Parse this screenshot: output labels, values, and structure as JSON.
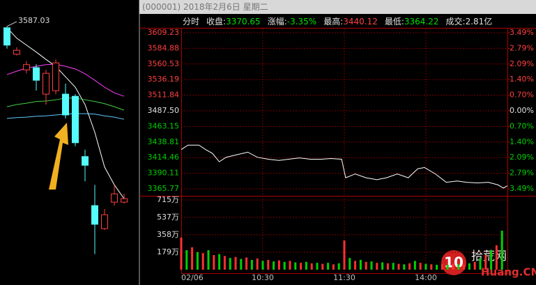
{
  "header": {
    "title": "(000001) 2018年2月6日 星期二"
  },
  "info": {
    "mode": "分时",
    "items": [
      {
        "label": "收盘:",
        "value": "3370.65",
        "color": "#00e000"
      },
      {
        "label": "涨幅:",
        "value": "-3.35%",
        "color": "#00e000"
      },
      {
        "label": "最高:",
        "value": "3440.12",
        "color": "#ff4040"
      },
      {
        "label": "最低:",
        "value": "3364.22",
        "color": "#00e000"
      },
      {
        "label": "成交:",
        "value": "2.81亿",
        "color": "#e0e0e0"
      }
    ]
  },
  "chart_data": [
    {
      "type": "candlestick",
      "open": [
        3584,
        3523,
        3487,
        3492,
        3431,
        3439,
        3431,
        3426,
        3287,
        3174,
        3121,
        3182,
        3182
      ],
      "high": [
        3587.03,
        3539,
        3507,
        3500,
        3487,
        3511,
        3455,
        3431,
        3303,
        3222,
        3166,
        3222,
        3201
      ],
      "low": [
        3536,
        3520,
        3479,
        3439,
        3407,
        3431,
        3375,
        3311,
        3230,
        3062,
        3118,
        3174,
        3179
      ],
      "close": [
        3544,
        3532,
        3499,
        3463,
        3479,
        3503,
        3383,
        3319,
        3267,
        3131,
        3153,
        3201,
        3190
      ],
      "high_label": "3587.03",
      "ylim": [
        2991,
        3648
      ],
      "up_color": "#ff4040",
      "down_color": "#54fcfc",
      "lines": [
        {
          "color": "#ffffff",
          "values": [
            3584,
            3560,
            3544,
            3528,
            3511,
            3495,
            3471,
            3447,
            3407,
            3343,
            3263,
            3222,
            3190
          ]
        },
        {
          "color": "#ff40ff",
          "values": [
            3476,
            3484,
            3491,
            3495,
            3499,
            3500,
            3495,
            3489,
            3478,
            3463,
            3447,
            3434,
            3426
          ]
        },
        {
          "color": "#40d040",
          "values": [
            3402,
            3407,
            3410,
            3414,
            3415,
            3418,
            3422,
            3422,
            3418,
            3414,
            3409,
            3402,
            3394
          ]
        },
        {
          "color": "#60c8ff",
          "values": [
            3375,
            3377,
            3378,
            3380,
            3381,
            3383,
            3385,
            3386,
            3386,
            3385,
            3381,
            3378,
            3373
          ]
        }
      ]
    },
    {
      "type": "line",
      "x": [
        0,
        5,
        13,
        18,
        23,
        28,
        33,
        41,
        49,
        56,
        64,
        72,
        79,
        87,
        95,
        103,
        110,
        118,
        121,
        128,
        136,
        144,
        151,
        159,
        167,
        174,
        179,
        187,
        195,
        203,
        210,
        218,
        226,
        233,
        237,
        240
      ],
      "values": [
        3427,
        3434,
        3434,
        3427,
        3421,
        3408,
        3415,
        3419,
        3423,
        3415,
        3412,
        3410,
        3412,
        3414,
        3412,
        3412,
        3413,
        3412,
        3383,
        3389,
        3383,
        3380,
        3383,
        3389,
        3383,
        3397,
        3399,
        3389,
        3376,
        3378,
        3376,
        3375,
        3376,
        3372,
        3367,
        3370.65
      ],
      "color": "#ffffff",
      "xlim": [
        0,
        240
      ],
      "ylim": [
        3365.77,
        3609.23
      ],
      "yticks": [
        3609.23,
        3584.88,
        3560.53,
        3536.19,
        3511.84,
        {
          "value": 3487.5,
          "label": "3487.50"
        },
        3463.15,
        3438.81,
        3414.46,
        3390.11,
        3365.77
      ],
      "y2lim": [
        -3.49,
        3.49
      ],
      "y2ticks": [
        {
          "value": 3.49,
          "label": "3.49%"
        },
        {
          "value": 2.79,
          "label": "2.79%"
        },
        {
          "value": 2.09,
          "label": "2.09%"
        },
        {
          "value": 1.4,
          "label": "1.40%"
        },
        {
          "value": 0.7,
          "label": "0.70%"
        },
        {
          "value": 0,
          "label": "0.00%"
        },
        {
          "value": -0.7,
          "label": "0.70%"
        },
        {
          "value": -1.4,
          "label": "1.40%"
        },
        {
          "value": -2.09,
          "label": "2.09%"
        },
        {
          "value": -2.79,
          "label": "2.79%"
        },
        {
          "value": -3.49,
          "label": "3.49%"
        }
      ],
      "xticks": [
        {
          "value": 0,
          "label": "02/06"
        },
        {
          "value": 60,
          "label": "10:30"
        },
        {
          "value": 120,
          "label": "11:30"
        },
        {
          "value": 180,
          "label": "14:00"
        }
      ],
      "up_color": "#ff4040",
      "down_color": "#00d000",
      "flat_color": "#e0e0e0",
      "grid": true
    },
    {
      "type": "bar",
      "xlim": [
        0,
        240
      ],
      "ylim": [
        0,
        715
      ],
      "yticks": [
        {
          "value": 179,
          "label": "179万"
        },
        {
          "value": 358,
          "label": "358万"
        },
        {
          "value": 537,
          "label": "537万"
        },
        {
          "value": 715,
          "label": "715万"
        }
      ],
      "series": [
        {
          "color": "#ff3030",
          "x": [
            0,
            8,
            16,
            24,
            32,
            40,
            48,
            56,
            64,
            72,
            80,
            88,
            96,
            104,
            112,
            120,
            128,
            136,
            144,
            152,
            160,
            168,
            176,
            184,
            192,
            200,
            208,
            216,
            224,
            232
          ],
          "values": [
            330,
            230,
            170,
            150,
            140,
            130,
            125,
            115,
            100,
            95,
            90,
            70,
            65,
            60,
            55,
            300,
            90,
            80,
            70,
            65,
            60,
            65,
            70,
            55,
            55,
            60,
            50,
            80,
            150,
            250
          ]
        },
        {
          "color": "#00d000",
          "x": [
            4,
            12,
            20,
            28,
            36,
            44,
            52,
            60,
            68,
            76,
            84,
            92,
            100,
            108,
            116,
            124,
            132,
            140,
            148,
            156,
            164,
            172,
            180,
            188,
            196,
            204,
            212,
            220,
            228,
            236
          ],
          "values": [
            200,
            180,
            200,
            160,
            120,
            110,
            100,
            90,
            85,
            80,
            75,
            80,
            70,
            70,
            65,
            120,
            100,
            85,
            75,
            70,
            55,
            90,
            60,
            50,
            50,
            55,
            65,
            120,
            200,
            400
          ]
        }
      ]
    }
  ],
  "watermark": {
    "number": "10",
    "name": "拾荒网",
    "site": "Huang.CN"
  }
}
